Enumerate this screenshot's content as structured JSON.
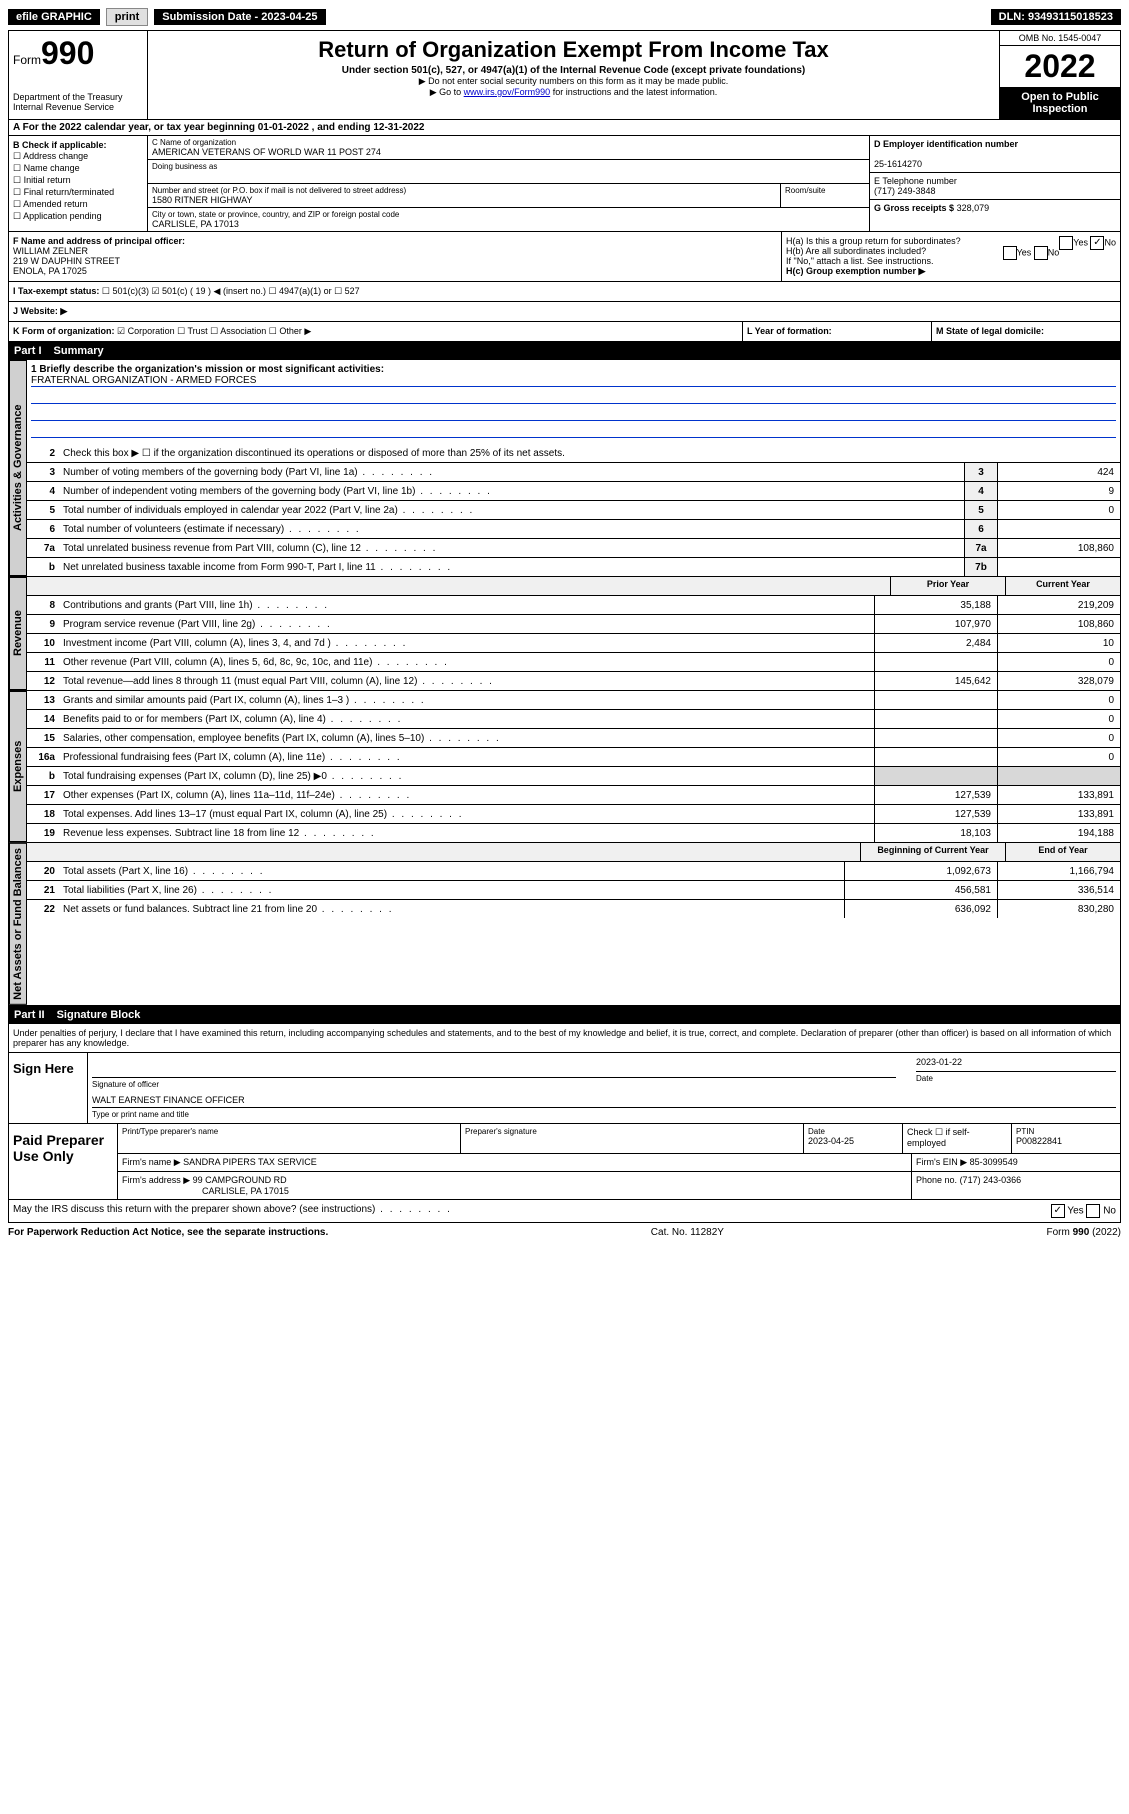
{
  "topbar": {
    "efile_label": "efile GRAPHIC",
    "print_btn": "print",
    "subdate_label": "Submission Date - 2023-04-25",
    "dln": "DLN: 93493115018523"
  },
  "header": {
    "form_label": "Form",
    "form_num": "990",
    "dept": "Department of the Treasury",
    "irs": "Internal Revenue Service",
    "title": "Return of Organization Exempt From Income Tax",
    "subtitle": "Under section 501(c), 527, or 4947(a)(1) of the Internal Revenue Code (except private foundations)",
    "note1": "▶ Do not enter social security numbers on this form as it may be made public.",
    "note2_pre": "▶ Go to ",
    "note2_link": "www.irs.gov/Form990",
    "note2_post": " for instructions and the latest information.",
    "omb": "OMB No. 1545-0047",
    "year": "2022",
    "open": "Open to Public Inspection"
  },
  "rowA": {
    "text": "A For the 2022 calendar year, or tax year beginning 01-01-2022  , and ending 12-31-2022"
  },
  "colB": {
    "label": "B Check if applicable:",
    "opts": [
      "☐ Address change",
      "☐ Name change",
      "☐ Initial return",
      "☐ Final return/terminated",
      "☐ Amended return",
      "☐ Application pending"
    ]
  },
  "colC": {
    "name_label": "C Name of organization",
    "name": "AMERICAN VETERANS OF WORLD WAR 11 POST 274",
    "dba_label": "Doing business as",
    "addr_label": "Number and street (or P.O. box if mail is not delivered to street address)",
    "room_label": "Room/suite",
    "addr": "1580 RITNER HIGHWAY",
    "city_label": "City or town, state or province, country, and ZIP or foreign postal code",
    "city": "CARLISLE, PA  17013"
  },
  "colRight": {
    "d_label": "D Employer identification number",
    "d_val": "25-1614270",
    "e_label": "E Telephone number",
    "e_val": "(717) 249-3848",
    "g_label": "G Gross receipts $",
    "g_val": "328,079"
  },
  "rowF": {
    "f_label": "F Name and address of principal officer:",
    "f_name": "WILLIAM ZELNER",
    "f_addr1": "219 W DAUPHIN STREET",
    "f_addr2": "ENOLA, PA  17025",
    "ha": "H(a) Is this a group return for subordinates?",
    "ha_yes": "Yes",
    "ha_no": "No",
    "hb": "H(b) Are all subordinates included?",
    "hb_note": "If \"No,\" attach a list. See instructions.",
    "hc": "H(c) Group exemption number ▶"
  },
  "rowI": {
    "label": "I   Tax-exempt status:",
    "opts": "☐ 501(c)(3)   ☑ 501(c) ( 19 ) ◀ (insert no.)   ☐ 4947(a)(1) or   ☐ 527"
  },
  "rowJ": {
    "label": "J   Website: ▶"
  },
  "rowK": {
    "k_label": "K Form of organization:",
    "k_opts": "☑ Corporation  ☐ Trust  ☐ Association  ☐ Other ▶",
    "l_label": "L Year of formation:",
    "m_label": "M State of legal domicile:"
  },
  "part1": {
    "no": "Part I",
    "title": "Summary",
    "tab_gov": "Activities & Governance",
    "tab_rev": "Revenue",
    "tab_exp": "Expenses",
    "tab_net": "Net Assets or Fund Balances",
    "q1_label": "1  Briefly describe the organization's mission or most significant activities:",
    "q1_val": "FRATERNAL ORGANIZATION - ARMED FORCES",
    "q2": "Check this box ▶ ☐  if the organization discontinued its operations or disposed of more than 25% of its net assets.",
    "rows_gov": [
      {
        "ln": "3",
        "desc": "Number of voting members of the governing body (Part VI, line 1a)",
        "box": "3",
        "val": "424"
      },
      {
        "ln": "4",
        "desc": "Number of independent voting members of the governing body (Part VI, line 1b)",
        "box": "4",
        "val": "9"
      },
      {
        "ln": "5",
        "desc": "Total number of individuals employed in calendar year 2022 (Part V, line 2a)",
        "box": "5",
        "val": "0"
      },
      {
        "ln": "6",
        "desc": "Total number of volunteers (estimate if necessary)",
        "box": "6",
        "val": ""
      },
      {
        "ln": "7a",
        "desc": "Total unrelated business revenue from Part VIII, column (C), line 12",
        "box": "7a",
        "val": "108,860"
      },
      {
        "ln": "b",
        "desc": "Net unrelated business taxable income from Form 990-T, Part I, line 11",
        "box": "7b",
        "val": ""
      }
    ],
    "col_prior": "Prior Year",
    "col_current": "Current Year",
    "col_begin": "Beginning of Current Year",
    "col_end": "End of Year",
    "rows_rev": [
      {
        "ln": "8",
        "desc": "Contributions and grants (Part VIII, line 1h)",
        "prior": "35,188",
        "curr": "219,209"
      },
      {
        "ln": "9",
        "desc": "Program service revenue (Part VIII, line 2g)",
        "prior": "107,970",
        "curr": "108,860"
      },
      {
        "ln": "10",
        "desc": "Investment income (Part VIII, column (A), lines 3, 4, and 7d )",
        "prior": "2,484",
        "curr": "10"
      },
      {
        "ln": "11",
        "desc": "Other revenue (Part VIII, column (A), lines 5, 6d, 8c, 9c, 10c, and 11e)",
        "prior": "",
        "curr": "0"
      },
      {
        "ln": "12",
        "desc": "Total revenue—add lines 8 through 11 (must equal Part VIII, column (A), line 12)",
        "prior": "145,642",
        "curr": "328,079"
      }
    ],
    "rows_exp": [
      {
        "ln": "13",
        "desc": "Grants and similar amounts paid (Part IX, column (A), lines 1–3 )",
        "prior": "",
        "curr": "0"
      },
      {
        "ln": "14",
        "desc": "Benefits paid to or for members (Part IX, column (A), line 4)",
        "prior": "",
        "curr": "0"
      },
      {
        "ln": "15",
        "desc": "Salaries, other compensation, employee benefits (Part IX, column (A), lines 5–10)",
        "prior": "",
        "curr": "0"
      },
      {
        "ln": "16a",
        "desc": "Professional fundraising fees (Part IX, column (A), line 11e)",
        "prior": "",
        "curr": "0"
      },
      {
        "ln": "b",
        "desc": "Total fundraising expenses (Part IX, column (D), line 25) ▶0",
        "prior": "shaded",
        "curr": "shaded"
      },
      {
        "ln": "17",
        "desc": "Other expenses (Part IX, column (A), lines 11a–11d, 11f–24e)",
        "prior": "127,539",
        "curr": "133,891"
      },
      {
        "ln": "18",
        "desc": "Total expenses. Add lines 13–17 (must equal Part IX, column (A), line 25)",
        "prior": "127,539",
        "curr": "133,891"
      },
      {
        "ln": "19",
        "desc": "Revenue less expenses. Subtract line 18 from line 12",
        "prior": "18,103",
        "curr": "194,188"
      }
    ],
    "rows_net": [
      {
        "ln": "20",
        "desc": "Total assets (Part X, line 16)",
        "prior": "1,092,673",
        "curr": "1,166,794"
      },
      {
        "ln": "21",
        "desc": "Total liabilities (Part X, line 26)",
        "prior": "456,581",
        "curr": "336,514"
      },
      {
        "ln": "22",
        "desc": "Net assets or fund balances. Subtract line 21 from line 20",
        "prior": "636,092",
        "curr": "830,280"
      }
    ]
  },
  "part2": {
    "no": "Part II",
    "title": "Signature Block",
    "declare": "Under penalties of perjury, I declare that I have examined this return, including accompanying schedules and statements, and to the best of my knowledge and belief, it is true, correct, and complete. Declaration of preparer (other than officer) is based on all information of which preparer has any knowledge.",
    "sign_here": "Sign Here",
    "sig_officer": "Signature of officer",
    "sig_date_val": "2023-01-22",
    "sig_date_label": "Date",
    "sig_name": "WALT EARNEST FINANCE OFFICER",
    "sig_name_label": "Type or print name and title",
    "paid": "Paid Preparer Use Only",
    "prep_name_label": "Print/Type preparer's name",
    "prep_sig_label": "Preparer's signature",
    "prep_date_label": "Date",
    "prep_date_val": "2023-04-25",
    "prep_check": "Check ☐ if self-employed",
    "ptin_label": "PTIN",
    "ptin_val": "P00822841",
    "firm_name_label": "Firm's name    ▶",
    "firm_name": "SANDRA PIPERS TAX SERVICE",
    "firm_ein_label": "Firm's EIN ▶",
    "firm_ein": "85-3099549",
    "firm_addr_label": "Firm's address ▶",
    "firm_addr1": "99 CAMPGROUND RD",
    "firm_addr2": "CARLISLE, PA  17015",
    "firm_phone_label": "Phone no.",
    "firm_phone": "(717) 243-0366",
    "may_irs": "May the IRS discuss this return with the preparer shown above? (see instructions)",
    "may_yes": "Yes",
    "may_no": "No"
  },
  "footer": {
    "left": "For Paperwork Reduction Act Notice, see the separate instructions.",
    "mid": "Cat. No. 11282Y",
    "right": "Form 990 (2022)"
  }
}
